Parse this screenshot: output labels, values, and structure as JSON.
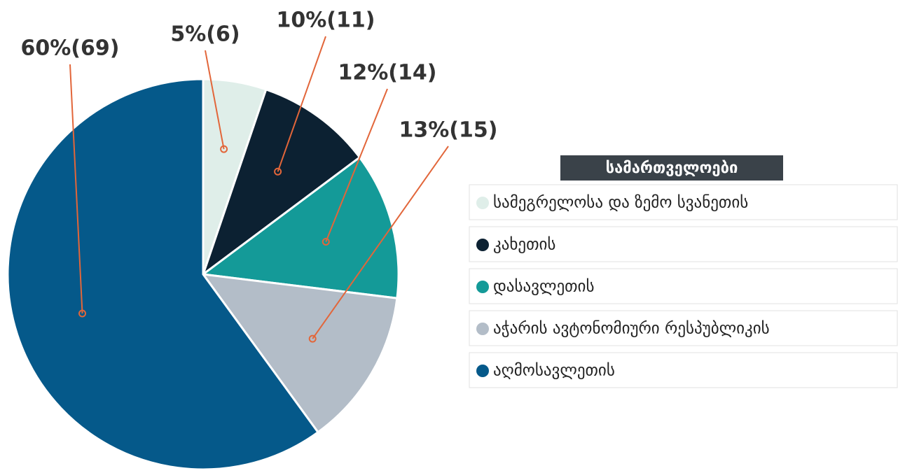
{
  "chart_data": {
    "type": "pie",
    "categories": [
      "სამეგრელოსა და ზემო სვანეთის",
      "კახეთის",
      "დასავლეთის",
      "აჭარის ავტონომიური რესპუბლიკის",
      "აღმოსავლეთის"
    ],
    "values": [
      6,
      11,
      14,
      15,
      69
    ],
    "value_labels": [
      "5%(6)",
      "10%(11)",
      "12%(14)",
      "13%(15)",
      "60%(69)"
    ],
    "colors": [
      "#dfeee9",
      "#0c2132",
      "#149a98",
      "#b3bdc8",
      "#05598a"
    ],
    "legend_title": "სამართველოები",
    "legend": "right"
  }
}
